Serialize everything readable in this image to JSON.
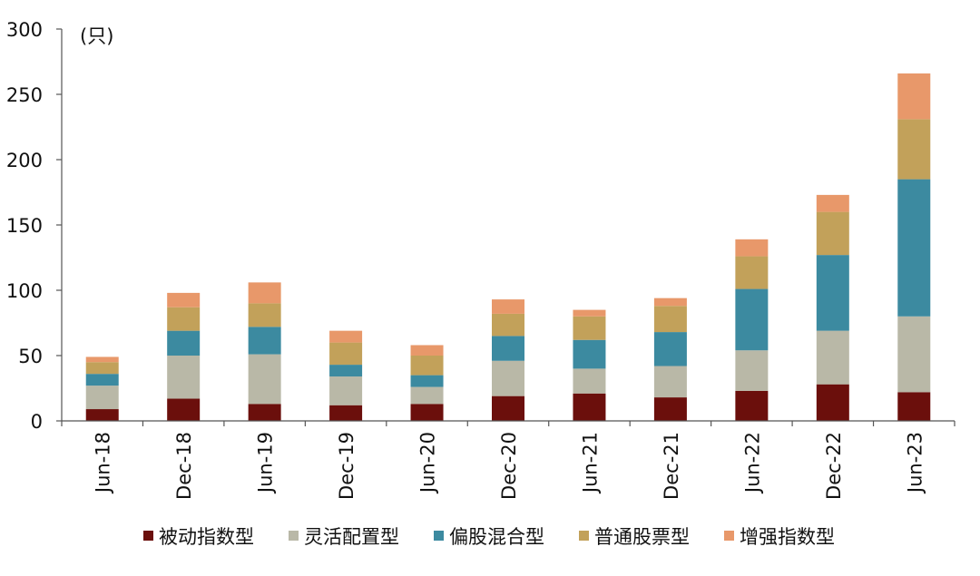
{
  "chart_data": {
    "type": "bar",
    "stacked": true,
    "unit_label": "(只)",
    "categories": [
      "Jun-18",
      "Dec-18",
      "Jun-19",
      "Dec-19",
      "Jun-20",
      "Dec-20",
      "Jun-21",
      "Dec-21",
      "Jun-22",
      "Dec-22",
      "Jun-23"
    ],
    "ylim": [
      0,
      300
    ],
    "yticks": [
      0,
      50,
      100,
      150,
      200,
      250,
      300
    ],
    "grid": false,
    "legend_position": "bottom",
    "series": [
      {
        "name": "被动指数型",
        "color": "#6b0f0c",
        "values": [
          9,
          17,
          13,
          12,
          13,
          19,
          21,
          18,
          23,
          28,
          22
        ]
      },
      {
        "name": "灵活配置型",
        "color": "#b9b8a7",
        "values": [
          18,
          33,
          38,
          22,
          13,
          27,
          19,
          24,
          31,
          41,
          58
        ]
      },
      {
        "name": "偏股混合型",
        "color": "#3c8aa0",
        "values": [
          9,
          19,
          21,
          9,
          9,
          19,
          22,
          26,
          47,
          58,
          105
        ]
      },
      {
        "name": "普通股票型",
        "color": "#c2a15a",
        "values": [
          9,
          18,
          18,
          17,
          15,
          17,
          18,
          20,
          25,
          33,
          46
        ]
      },
      {
        "name": "增强指数型",
        "color": "#e8986a",
        "values": [
          4,
          11,
          16,
          9,
          8,
          11,
          5,
          6,
          13,
          13,
          35
        ]
      }
    ]
  }
}
